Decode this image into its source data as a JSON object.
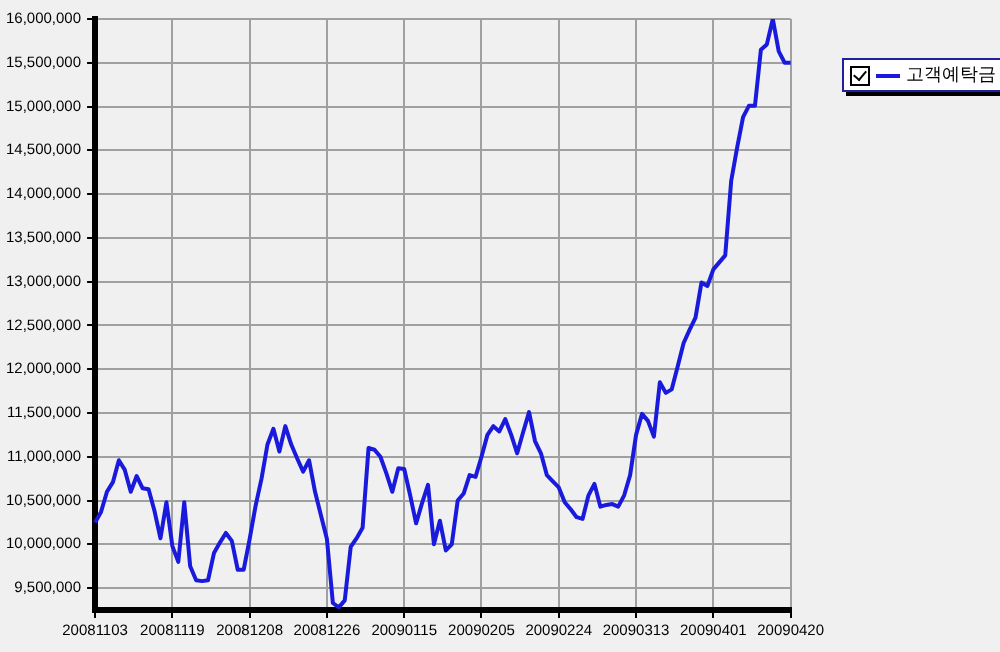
{
  "chart_data": {
    "type": "line",
    "categories": [
      "20081103",
      null,
      null,
      null,
      null,
      null,
      null,
      null,
      null,
      null,
      null,
      null,
      null,
      "20081119",
      null,
      null,
      null,
      null,
      null,
      null,
      null,
      null,
      null,
      null,
      null,
      null,
      "20081208",
      null,
      null,
      null,
      null,
      null,
      null,
      null,
      null,
      null,
      null,
      null,
      null,
      "20081226",
      null,
      null,
      null,
      null,
      null,
      null,
      null,
      null,
      null,
      null,
      null,
      null,
      "20090115",
      null,
      null,
      null,
      null,
      null,
      null,
      null,
      null,
      null,
      null,
      null,
      null,
      "20090205",
      null,
      null,
      null,
      null,
      null,
      null,
      null,
      null,
      null,
      null,
      null,
      null,
      "20090224",
      null,
      null,
      null,
      null,
      null,
      null,
      null,
      null,
      null,
      null,
      null,
      null,
      "20090313",
      null,
      null,
      null,
      null,
      null,
      null,
      null,
      null,
      null,
      null,
      null,
      null,
      "20090401",
      null,
      null,
      null,
      null,
      null,
      null,
      null,
      null,
      null,
      null,
      null,
      null,
      "20090420"
    ],
    "series": [
      {
        "name": "고객예탁금",
        "color": "#1a1adc",
        "values": [
          10250000,
          10370000,
          10600000,
          10710000,
          10960000,
          10850000,
          10600000,
          10780000,
          10640000,
          10630000,
          10380000,
          10070000,
          10480000,
          9980000,
          9800000,
          10480000,
          9750000,
          9590000,
          9580000,
          9590000,
          9900000,
          10020000,
          10130000,
          10040000,
          9710000,
          9710000,
          10060000,
          10440000,
          10750000,
          11140000,
          11320000,
          11060000,
          11350000,
          11140000,
          10980000,
          10830000,
          10960000,
          10600000,
          10330000,
          10060000,
          9330000,
          9280000,
          9360000,
          9970000,
          10070000,
          10190000,
          11100000,
          11080000,
          11000000,
          10810000,
          10600000,
          10870000,
          10860000,
          10560000,
          10240000,
          10470000,
          10680000,
          10000000,
          10270000,
          9930000,
          10000000,
          10500000,
          10580000,
          10790000,
          10770000,
          11000000,
          11250000,
          11350000,
          11290000,
          11430000,
          11250000,
          11040000,
          11280000,
          11510000,
          11180000,
          11040000,
          10790000,
          10720000,
          10650000,
          10480000,
          10400000,
          10310000,
          10290000,
          10560000,
          10690000,
          10430000,
          10450000,
          10460000,
          10430000,
          10560000,
          10790000,
          11250000,
          11490000,
          11410000,
          11230000,
          11850000,
          11730000,
          11770000,
          12030000,
          12300000,
          12450000,
          12590000,
          12990000,
          12950000,
          13140000,
          13220000,
          13300000,
          14150000,
          14530000,
          14880000,
          15010000,
          15010000,
          15650000,
          15710000,
          16000000,
          15630000,
          15500000,
          15500000
        ]
      }
    ],
    "ylim": [
      9250000,
      16000000
    ],
    "yticks": [
      {
        "value": 9500000,
        "label": "9,500,000"
      },
      {
        "value": 10000000,
        "label": "10,000,000"
      },
      {
        "value": 10500000,
        "label": "10,500,000"
      },
      {
        "value": 11000000,
        "label": "11,000,000"
      },
      {
        "value": 11500000,
        "label": "11,500,000"
      },
      {
        "value": 12000000,
        "label": "12,000,000"
      },
      {
        "value": 12500000,
        "label": "12,500,000"
      },
      {
        "value": 13000000,
        "label": "13,000,000"
      },
      {
        "value": 13500000,
        "label": "13,500,000"
      },
      {
        "value": 14000000,
        "label": "14,000,000"
      },
      {
        "value": 14500000,
        "label": "14,500,000"
      },
      {
        "value": 15000000,
        "label": "15,000,000"
      },
      {
        "value": 15500000,
        "label": "15,500,000"
      },
      {
        "value": 16000000,
        "label": "16,000,000"
      }
    ],
    "grid": true,
    "legend": "top right",
    "marker": "none",
    "line_style": "solid"
  }
}
